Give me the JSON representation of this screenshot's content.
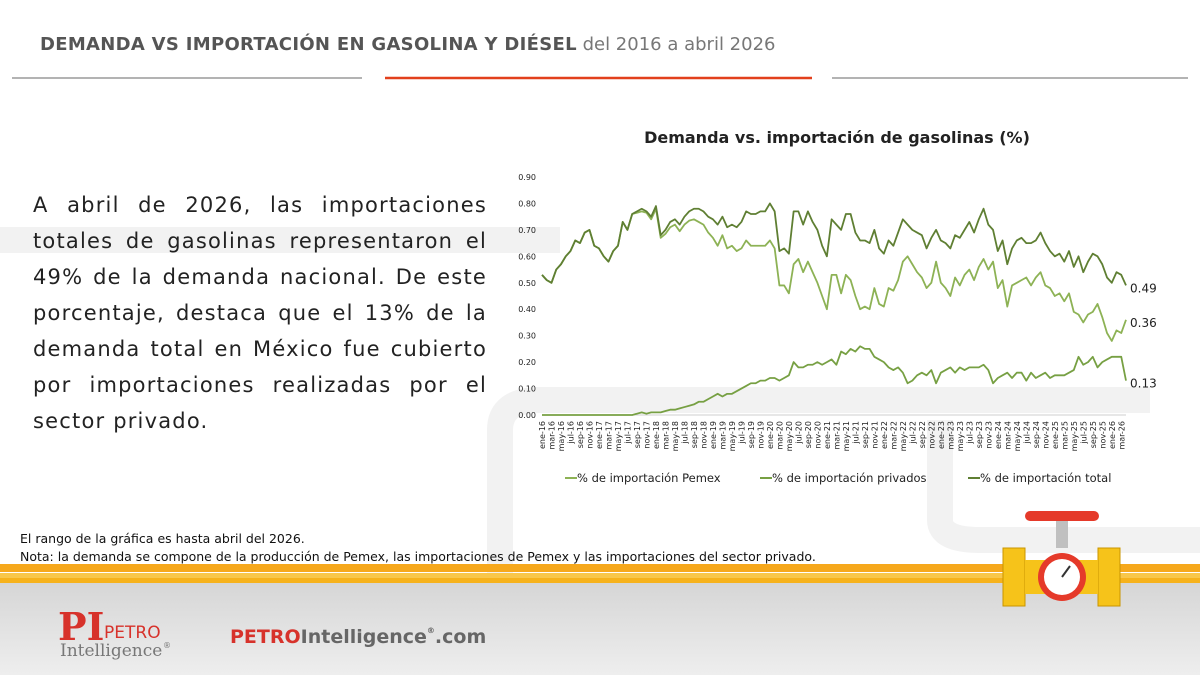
{
  "header": {
    "title": "DEMANDA VS IMPORTACIÓN EN GASOLINA Y DIÉSEL",
    "subtitle": "del 2016 a abril 2026"
  },
  "body": "A abril de 2026, las importaciones totales de gasolinas representaron el 49% de la demanda nacional. De este porcentaje, destaca que el 13% de la demanda total en México fue cubierto por importaciones realizadas por el sector privado.",
  "footnotes": [
    "El rango de la gráfica es hasta abril del 2026.",
    "Nota: la demanda se compone de la producción de Pemex, las importaciones de Pemex y las importaciones del sector privado."
  ],
  "logo": {
    "mark": "PI",
    "line1": "PETRO",
    "line2": "Intelligence",
    "reg": "®"
  },
  "website": {
    "part1": "PETRO",
    "part2": "Intelligence",
    "reg": "®",
    "part3": ".com"
  },
  "chart_data": {
    "type": "line",
    "title": "Demanda vs. importación de gasolinas (%)",
    "categories": [
      "ene-16",
      null,
      "mar-16",
      null,
      "may-16",
      null,
      "jul-16",
      null,
      "sep-16",
      null,
      "nov-16",
      null,
      "ene-17",
      null,
      "mar-17",
      null,
      "may-17",
      null,
      "jul-17",
      null,
      "sep-17",
      null,
      "nov-17",
      null,
      "ene-18",
      null,
      "mar-18",
      null,
      "may-18",
      null,
      "jul-18",
      null,
      "sep-18",
      null,
      "nov-18",
      null,
      "ene-19",
      null,
      "mar-19",
      null,
      "may-19",
      null,
      "jul-19",
      null,
      "sep-19",
      null,
      "nov-19",
      null,
      "ene-20",
      null,
      "mar-20",
      null,
      "may-20",
      null,
      "jul-20",
      null,
      "sep-20",
      null,
      "nov-20",
      null,
      "ene-21",
      null,
      "mar-21",
      null,
      "may-21",
      null,
      "jul-21",
      null,
      "sep-21",
      null,
      "nov-21",
      null,
      "ene-22",
      null,
      "mar-22",
      null,
      "may-22",
      null,
      "jul-22",
      null,
      "sep-22",
      null,
      "nov-22",
      null,
      "ene-23",
      null,
      "mar-23",
      null,
      "may-23",
      null,
      "jul-23",
      null,
      "sep-23",
      null,
      "nov-23",
      null,
      "ene-24",
      null,
      "mar-24",
      null,
      "may-24",
      null,
      "jul-24",
      null,
      "sep-24",
      null,
      "nov-24",
      null,
      "ene-25",
      null,
      "mar-25",
      null,
      "may-25",
      null,
      "jul-25",
      null,
      "sep-25",
      null,
      "nov-25",
      null,
      "ene-26",
      null,
      "mar-26",
      null
    ],
    "series": [
      {
        "name": "% de importación Pemex",
        "color": "#8db255",
        "values": [
          0.53,
          0.51,
          0.5,
          0.55,
          0.57,
          0.6,
          0.62,
          0.66,
          0.65,
          0.69,
          0.7,
          0.64,
          0.63,
          0.6,
          0.58,
          0.62,
          0.64,
          0.73,
          0.7,
          0.76,
          0.765,
          0.77,
          0.765,
          0.74,
          0.78,
          0.67,
          0.685,
          0.71,
          0.72,
          0.695,
          0.72,
          0.735,
          0.74,
          0.73,
          0.72,
          0.69,
          0.67,
          0.64,
          0.68,
          0.63,
          0.64,
          0.62,
          0.63,
          0.66,
          0.64,
          0.64,
          0.64,
          0.64,
          0.66,
          0.63,
          0.49,
          0.49,
          0.46,
          0.57,
          0.59,
          0.54,
          0.58,
          0.54,
          0.5,
          0.45,
          0.4,
          0.53,
          0.53,
          0.46,
          0.53,
          0.51,
          0.45,
          0.4,
          0.41,
          0.4,
          0.48,
          0.42,
          0.41,
          0.48,
          0.47,
          0.51,
          0.58,
          0.6,
          0.57,
          0.54,
          0.52,
          0.48,
          0.5,
          0.58,
          0.5,
          0.48,
          0.45,
          0.52,
          0.49,
          0.53,
          0.55,
          0.51,
          0.56,
          0.59,
          0.55,
          0.58,
          0.48,
          0.51,
          0.41,
          0.49,
          0.5,
          0.51,
          0.52,
          0.49,
          0.52,
          0.54,
          0.49,
          0.48,
          0.45,
          0.46,
          0.43,
          0.46,
          0.39,
          0.38,
          0.35,
          0.38,
          0.39,
          0.42,
          0.37,
          0.31,
          0.28,
          0.32,
          0.31,
          0.36
        ]
      },
      {
        "name": "% de importación privados",
        "color": "#77a043",
        "values": [
          0,
          0,
          0,
          0,
          0,
          0,
          0,
          0,
          0,
          0,
          0,
          0,
          0,
          0,
          0,
          0,
          0,
          0,
          0,
          0,
          0.005,
          0.01,
          0.005,
          0.01,
          0.01,
          0.01,
          0.015,
          0.02,
          0.02,
          0.025,
          0.03,
          0.035,
          0.04,
          0.05,
          0.05,
          0.06,
          0.07,
          0.08,
          0.07,
          0.08,
          0.08,
          0.09,
          0.1,
          0.11,
          0.12,
          0.12,
          0.13,
          0.13,
          0.14,
          0.14,
          0.13,
          0.14,
          0.15,
          0.2,
          0.18,
          0.18,
          0.19,
          0.19,
          0.2,
          0.19,
          0.2,
          0.21,
          0.19,
          0.24,
          0.23,
          0.25,
          0.24,
          0.26,
          0.25,
          0.25,
          0.22,
          0.21,
          0.2,
          0.18,
          0.17,
          0.18,
          0.16,
          0.12,
          0.13,
          0.15,
          0.16,
          0.15,
          0.17,
          0.12,
          0.16,
          0.17,
          0.18,
          0.16,
          0.18,
          0.17,
          0.18,
          0.18,
          0.18,
          0.19,
          0.17,
          0.12,
          0.14,
          0.15,
          0.16,
          0.14,
          0.16,
          0.16,
          0.13,
          0.16,
          0.14,
          0.15,
          0.16,
          0.14,
          0.15,
          0.15,
          0.15,
          0.16,
          0.17,
          0.22,
          0.19,
          0.2,
          0.22,
          0.18,
          0.2,
          0.21,
          0.22,
          0.22,
          0.22,
          0.13
        ]
      },
      {
        "name": "% de importación total",
        "color": "#5f7f33",
        "values": [
          0.53,
          0.51,
          0.5,
          0.55,
          0.57,
          0.6,
          0.62,
          0.66,
          0.65,
          0.69,
          0.7,
          0.64,
          0.63,
          0.6,
          0.58,
          0.62,
          0.64,
          0.73,
          0.7,
          0.76,
          0.77,
          0.78,
          0.77,
          0.75,
          0.79,
          0.68,
          0.7,
          0.73,
          0.74,
          0.72,
          0.75,
          0.77,
          0.78,
          0.78,
          0.77,
          0.75,
          0.74,
          0.72,
          0.75,
          0.71,
          0.72,
          0.71,
          0.73,
          0.77,
          0.76,
          0.76,
          0.77,
          0.77,
          0.8,
          0.77,
          0.62,
          0.63,
          0.61,
          0.77,
          0.77,
          0.72,
          0.77,
          0.73,
          0.7,
          0.64,
          0.6,
          0.74,
          0.72,
          0.7,
          0.76,
          0.76,
          0.69,
          0.66,
          0.66,
          0.65,
          0.7,
          0.63,
          0.61,
          0.66,
          0.64,
          0.69,
          0.74,
          0.72,
          0.7,
          0.69,
          0.68,
          0.63,
          0.67,
          0.7,
          0.66,
          0.65,
          0.63,
          0.68,
          0.67,
          0.7,
          0.73,
          0.69,
          0.74,
          0.78,
          0.72,
          0.7,
          0.62,
          0.66,
          0.57,
          0.63,
          0.66,
          0.67,
          0.65,
          0.65,
          0.66,
          0.69,
          0.65,
          0.62,
          0.6,
          0.61,
          0.58,
          0.62,
          0.56,
          0.6,
          0.54,
          0.58,
          0.61,
          0.6,
          0.57,
          0.52,
          0.5,
          0.54,
          0.53,
          0.49
        ]
      }
    ],
    "ylim": [
      0,
      0.9
    ],
    "yticks": [
      {
        "value": 0,
        "label": "0.00"
      },
      {
        "value": 0.1,
        "label": "0.10"
      },
      {
        "value": 0.2,
        "label": "0.20"
      },
      {
        "value": 0.3,
        "label": "0.30"
      },
      {
        "value": 0.4,
        "label": "0.40"
      },
      {
        "value": 0.5,
        "label": "0.50"
      },
      {
        "value": 0.6,
        "label": "0.60"
      },
      {
        "value": 0.7,
        "label": "0.70"
      },
      {
        "value": 0.8,
        "label": "0.80"
      },
      {
        "value": 0.9,
        "label": "0.90"
      }
    ],
    "grid": false,
    "legend": "bottom",
    "end_labels": true
  }
}
